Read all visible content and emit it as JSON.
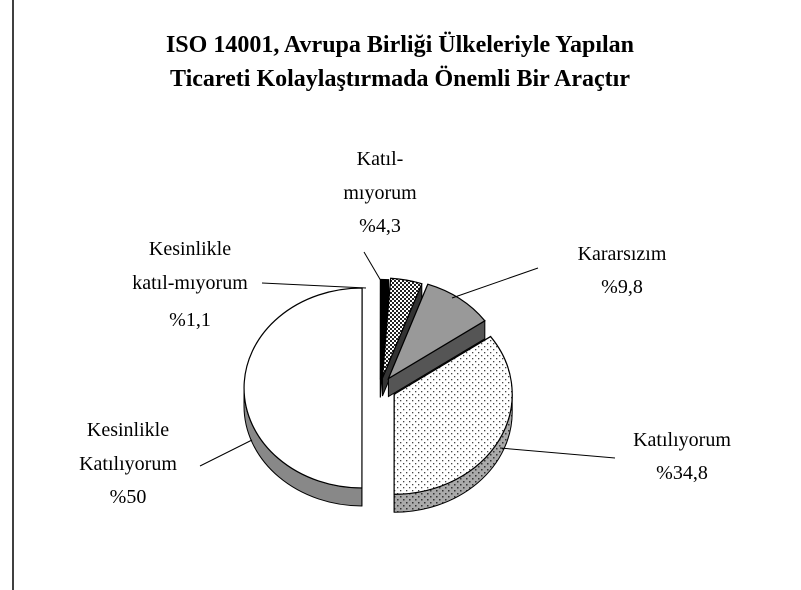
{
  "chart_data": {
    "type": "pie3d",
    "title": "ISO 14001, Avrupa Birliği Ülkeleriyle Yapılan\nTicareti Kolaylaştırmada Önemli Bir Araçtır",
    "categories": [
      "Katıl-\nmıyorum",
      "Kararsızım",
      "Katılıyorum",
      "Kesinlikle\nKatılıyorum",
      "Kesinlikle\nkatıl-mıyorum"
    ],
    "values": [
      4.3,
      9.8,
      34.8,
      50,
      1.1
    ],
    "value_labels": [
      "%4,3",
      "%9,8",
      "%34,8",
      "%50",
      "%1,1"
    ],
    "colors": [
      "url(#checker)",
      "#999999",
      "url(#dots)",
      "#ffffff",
      "#000000"
    ]
  }
}
